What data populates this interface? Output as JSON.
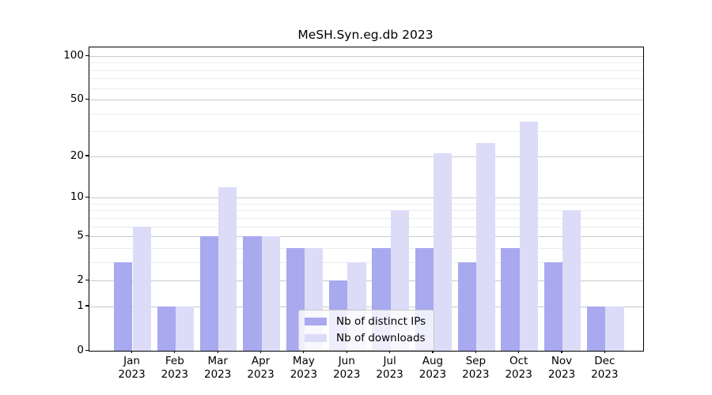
{
  "chart_data": {
    "type": "bar",
    "title": "MeSH.Syn.eg.db 2023",
    "year_label": "2023",
    "months": [
      "Jan",
      "Feb",
      "Mar",
      "Apr",
      "May",
      "Jun",
      "Jul",
      "Aug",
      "Sep",
      "Oct",
      "Nov",
      "Dec"
    ],
    "series": [
      {
        "name": "Nb of distinct IPs",
        "color": "#a9a9ef",
        "values": [
          3,
          1,
          5,
          5,
          4,
          2,
          4,
          4,
          3,
          4,
          3,
          1
        ]
      },
      {
        "name": "Nb of downloads",
        "color": "#dcdcf8",
        "values": [
          6,
          1,
          12,
          5,
          4,
          3,
          8,
          21,
          25,
          35,
          8,
          1
        ]
      }
    ],
    "y_scale": "log1p",
    "y_major_ticks": [
      0,
      1,
      2,
      5,
      10,
      20,
      50,
      100
    ],
    "y_minor_gridlines": [
      3,
      4,
      6,
      7,
      8,
      9,
      30,
      40,
      60,
      70,
      80,
      90
    ],
    "ylim": [
      0,
      115
    ],
    "grid": true,
    "legend_position": "lower center",
    "colors": {
      "axis": "#000000",
      "grid_major": "#c9c9c9",
      "grid_minor": "#ececec",
      "text": "#000000",
      "legend_border": "#c9c9c9",
      "legend_background": "rgba(255,255,255,0.8)"
    }
  }
}
